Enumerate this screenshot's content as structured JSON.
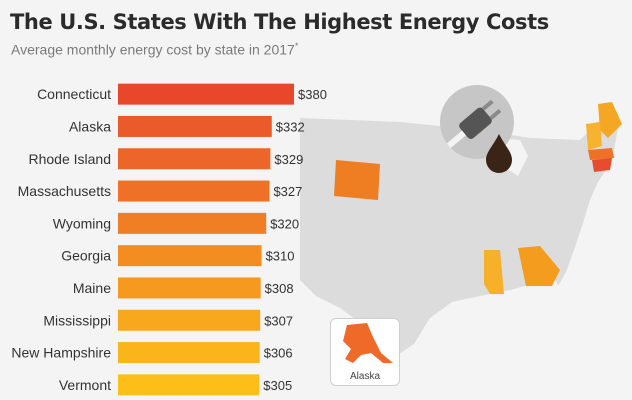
{
  "header": {
    "title": "The U.S. States With The Highest Energy Costs",
    "subtitle": "Average monthly energy cost by state in 2017",
    "subtitle_marker": "*"
  },
  "map": {
    "inset_label": "Alaska",
    "colors": {
      "land": "#dcdcdc",
      "wyoming": "#ef7d22",
      "georgia": "#f39c1e",
      "mississippi": "#f6b02a",
      "northeast": "#f5a623",
      "connecticut": "#e84c2e"
    }
  },
  "chart_data": {
    "type": "bar",
    "orientation": "horizontal",
    "categories": [
      "Connecticut",
      "Alaska",
      "Rhode Island",
      "Massachusetts",
      "Wyoming",
      "Georgia",
      "Maine",
      "Mississippi",
      "New Hampshire",
      "Vermont"
    ],
    "values": [
      380,
      332,
      329,
      327,
      320,
      310,
      308,
      307,
      306,
      305
    ],
    "value_labels": [
      "$380",
      "$332",
      "$329",
      "$327",
      "$320",
      "$310",
      "$308",
      "$307",
      "$306",
      "$305"
    ],
    "title": "The U.S. States With The Highest Energy Costs",
    "xlabel": "",
    "ylabel": "",
    "xlim": [
      0,
      380
    ],
    "grid": false,
    "bar_colors": [
      "#e8472c",
      "#ea5a2b",
      "#ec6629",
      "#ee7127",
      "#f07e24",
      "#f38d21",
      "#f59a1f",
      "#f7a81c",
      "#f9b51a",
      "#fbbf17"
    ]
  }
}
